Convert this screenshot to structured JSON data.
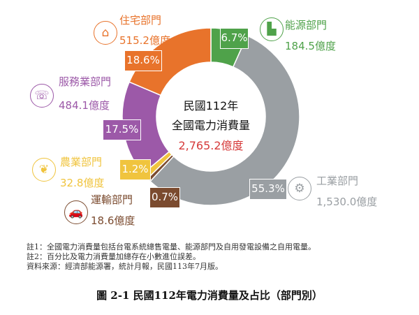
{
  "chart_data": {
    "type": "pie",
    "subtype": "donut",
    "center_text": {
      "line1": "民國112年",
      "line2": "全國電力消費量",
      "total": "2,765.2億度"
    },
    "order": "clockwise from top",
    "slices": [
      {
        "name": "能源部門",
        "value_label": "184.5億度",
        "value": 184.5,
        "percent": 6.7,
        "percent_label": "6.7%",
        "color": "#4fa24a",
        "icon": "factory-icon"
      },
      {
        "name": "工業部門",
        "value_label": "1,530.0億度",
        "value": 1530.0,
        "percent": 55.3,
        "percent_label": "55.3%",
        "color": "#9a9fa3",
        "icon": "gears-icon"
      },
      {
        "name": "運輸部門",
        "value_label": "18.6億度",
        "value": 18.6,
        "percent": 0.7,
        "percent_label": "0.7%",
        "color": "#7b4b2f",
        "icon": "car-icon"
      },
      {
        "name": "農業部門",
        "value_label": "32.8億度",
        "value": 32.8,
        "percent": 1.2,
        "percent_label": "1.2%",
        "color": "#f0c43e",
        "icon": "wheat-icon"
      },
      {
        "name": "服務業部門",
        "value_label": "484.1億度",
        "value": 484.1,
        "percent": 17.5,
        "percent_label": "17.5%",
        "color": "#9c59a8",
        "icon": "service-person-icon"
      },
      {
        "name": "住宅部門",
        "value_label": "515.2億度",
        "value": 515.2,
        "percent": 18.6,
        "percent_label": "18.6%",
        "color": "#e8732b",
        "icon": "house-icon"
      }
    ],
    "total_color": "#d63a3a"
  },
  "notes": [
    "註1：全國電力消費量包括台電系統總售電量、能源部門及自用發電設備之自用電量。",
    "註2：百分比及電力消費量加總存在小數進位誤差。",
    "資料來源：經濟部能源署，統計月報，民國113年7月版。"
  ],
  "caption": "圖 2-1  民國112年電力消費量及占比（部門別）"
}
